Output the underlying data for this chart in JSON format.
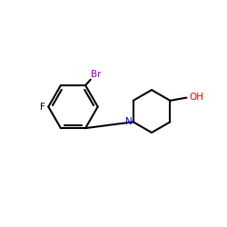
{
  "background_color": "#ffffff",
  "bond_color": "#000000",
  "br_color": "#9400d3",
  "f_color": "#000000",
  "n_color": "#0000ff",
  "oh_color": "#ff0000",
  "label_br": "Br",
  "label_f": "F",
  "label_n": "N",
  "label_oh": "OH",
  "figsize": [
    2.5,
    2.5
  ],
  "dpi": 100
}
